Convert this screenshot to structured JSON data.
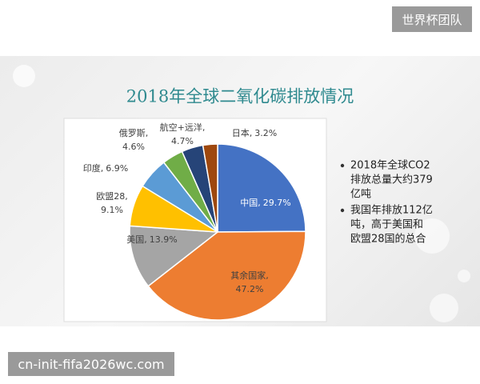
{
  "header": {
    "badge": "世界杯团队"
  },
  "footer": {
    "site": "cn-init-fifa2026wc.com"
  },
  "chart_data": {
    "type": "pie",
    "title": "2018年全球二氧化碳排放情况",
    "categories": [
      "中国,",
      "其余国家,",
      "美国,",
      "欧盟28,",
      "印度,",
      "俄罗斯,",
      "航空+远洋,",
      "日本,"
    ],
    "values": [
      29.7,
      47.2,
      13.9,
      9.1,
      6.9,
      4.6,
      4.7,
      3.2
    ],
    "value_labels": [
      "29.7%",
      "47.2%",
      "13.9%",
      "9.1%",
      "6.9%",
      "4.6%",
      "4.7%",
      "3.2%"
    ],
    "colors": [
      "#4472c4",
      "#ed7d31",
      "#a5a5a5",
      "#ffc000",
      "#5b9bd5",
      "#70ad47",
      "#264478",
      "#9e480e"
    ]
  },
  "notes": [
    [
      "2018年全球CO2",
      "排放总量大约379",
      "亿吨"
    ],
    [
      "我国年排放112亿",
      "吨，高于美国和",
      "欧盟28国的总合"
    ]
  ]
}
